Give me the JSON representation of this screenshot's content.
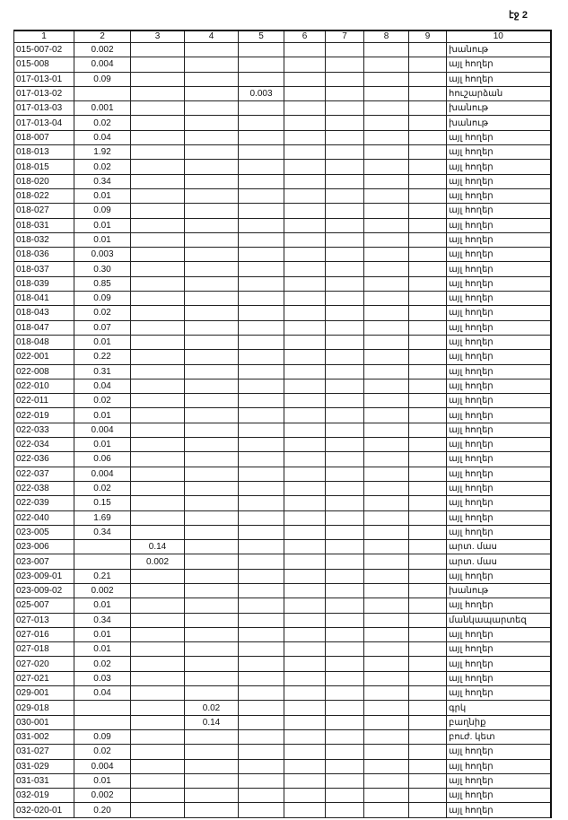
{
  "page_label": "էջ 2",
  "columns": [
    "1",
    "2",
    "3",
    "4",
    "5",
    "6",
    "7",
    "8",
    "9",
    "10"
  ],
  "rows": [
    [
      "015-007-02",
      "0.002",
      "",
      "",
      "",
      "",
      "",
      "",
      "",
      "խանութ"
    ],
    [
      "015-008",
      "0.004",
      "",
      "",
      "",
      "",
      "",
      "",
      "",
      "այլ հողեր"
    ],
    [
      "017-013-01",
      "0.09",
      "",
      "",
      "",
      "",
      "",
      "",
      "",
      "այլ հողեր"
    ],
    [
      "017-013-02",
      "",
      "",
      "",
      "0.003",
      "",
      "",
      "",
      "",
      "հուշարձան"
    ],
    [
      "017-013-03",
      "0.001",
      "",
      "",
      "",
      "",
      "",
      "",
      "",
      "խանութ"
    ],
    [
      "017-013-04",
      "0.02",
      "",
      "",
      "",
      "",
      "",
      "",
      "",
      "խանութ"
    ],
    [
      "018-007",
      "0.04",
      "",
      "",
      "",
      "",
      "",
      "",
      "",
      "այլ հողեր"
    ],
    [
      "018-013",
      "1.92",
      "",
      "",
      "",
      "",
      "",
      "",
      "",
      "այլ հողեր"
    ],
    [
      "018-015",
      "0.02",
      "",
      "",
      "",
      "",
      "",
      "",
      "",
      "այլ հողեր"
    ],
    [
      "018-020",
      "0.34",
      "",
      "",
      "",
      "",
      "",
      "",
      "",
      "այլ հողեր"
    ],
    [
      "018-022",
      "0.01",
      "",
      "",
      "",
      "",
      "",
      "",
      "",
      "այլ հողեր"
    ],
    [
      "018-027",
      "0.09",
      "",
      "",
      "",
      "",
      "",
      "",
      "",
      "այլ հողեր"
    ],
    [
      "018-031",
      "0.01",
      "",
      "",
      "",
      "",
      "",
      "",
      "",
      "այլ հողեր"
    ],
    [
      "018-032",
      "0.01",
      "",
      "",
      "",
      "",
      "",
      "",
      "",
      "այլ հողեր"
    ],
    [
      "018-036",
      "0.003",
      "",
      "",
      "",
      "",
      "",
      "",
      "",
      "այլ հողեր"
    ],
    [
      "018-037",
      "0.30",
      "",
      "",
      "",
      "",
      "",
      "",
      "",
      "այլ հողեր"
    ],
    [
      "018-039",
      "0.85",
      "",
      "",
      "",
      "",
      "",
      "",
      "",
      "այլ հողեր"
    ],
    [
      "018-041",
      "0.09",
      "",
      "",
      "",
      "",
      "",
      "",
      "",
      "այլ հողեր"
    ],
    [
      "018-043",
      "0.02",
      "",
      "",
      "",
      "",
      "",
      "",
      "",
      "այլ հողեր"
    ],
    [
      "018-047",
      "0.07",
      "",
      "",
      "",
      "",
      "",
      "",
      "",
      "այլ հողեր"
    ],
    [
      "018-048",
      "0.01",
      "",
      "",
      "",
      "",
      "",
      "",
      "",
      "այլ հողեր"
    ],
    [
      "022-001",
      "0.22",
      "",
      "",
      "",
      "",
      "",
      "",
      "",
      "այլ հողեր"
    ],
    [
      "022-008",
      "0.31",
      "",
      "",
      "",
      "",
      "",
      "",
      "",
      "այլ հողեր"
    ],
    [
      "022-010",
      "0.04",
      "",
      "",
      "",
      "",
      "",
      "",
      "",
      "այլ հողեր"
    ],
    [
      "022-011",
      "0.02",
      "",
      "",
      "",
      "",
      "",
      "",
      "",
      "այլ հողեր"
    ],
    [
      "022-019",
      "0.01",
      "",
      "",
      "",
      "",
      "",
      "",
      "",
      "այլ հողեր"
    ],
    [
      "022-033",
      "0.004",
      "",
      "",
      "",
      "",
      "",
      "",
      "",
      "այլ հողեր"
    ],
    [
      "022-034",
      "0.01",
      "",
      "",
      "",
      "",
      "",
      "",
      "",
      "այլ հողեր"
    ],
    [
      "022-036",
      "0.06",
      "",
      "",
      "",
      "",
      "",
      "",
      "",
      "այլ հողեր"
    ],
    [
      "022-037",
      "0.004",
      "",
      "",
      "",
      "",
      "",
      "",
      "",
      "այլ հողեր"
    ],
    [
      "022-038",
      "0.02",
      "",
      "",
      "",
      "",
      "",
      "",
      "",
      "այլ հողեր"
    ],
    [
      "022-039",
      "0.15",
      "",
      "",
      "",
      "",
      "",
      "",
      "",
      "այլ հողեր"
    ],
    [
      "022-040",
      "1.69",
      "",
      "",
      "",
      "",
      "",
      "",
      "",
      "այլ հողեր"
    ],
    [
      "023-005",
      "0.34",
      "",
      "",
      "",
      "",
      "",
      "",
      "",
      "այլ հողեր"
    ],
    [
      "023-006",
      "",
      "0.14",
      "",
      "",
      "",
      "",
      "",
      "",
      "արտ. մաս"
    ],
    [
      "023-007",
      "",
      "0.002",
      "",
      "",
      "",
      "",
      "",
      "",
      "արտ. մաս"
    ],
    [
      "023-009-01",
      "0.21",
      "",
      "",
      "",
      "",
      "",
      "",
      "",
      "այլ հողեր"
    ],
    [
      "023-009-02",
      "0.002",
      "",
      "",
      "",
      "",
      "",
      "",
      "",
      "խանութ"
    ],
    [
      "025-007",
      "0.01",
      "",
      "",
      "",
      "",
      "",
      "",
      "",
      "այլ հողեր"
    ],
    [
      "027-013",
      "0.34",
      "",
      "",
      "",
      "",
      "",
      "",
      "",
      "մանկապարտեզ"
    ],
    [
      "027-016",
      "0.01",
      "",
      "",
      "",
      "",
      "",
      "",
      "",
      "այլ հողեր"
    ],
    [
      "027-018",
      "0.01",
      "",
      "",
      "",
      "",
      "",
      "",
      "",
      "այլ հողեր"
    ],
    [
      "027-020",
      "0.02",
      "",
      "",
      "",
      "",
      "",
      "",
      "",
      "այլ հողեր"
    ],
    [
      "027-021",
      "0.03",
      "",
      "",
      "",
      "",
      "",
      "",
      "",
      "այլ հողեր"
    ],
    [
      "029-001",
      "0.04",
      "",
      "",
      "",
      "",
      "",
      "",
      "",
      "այլ հողեր"
    ],
    [
      "029-018",
      "",
      "",
      "0.02",
      "",
      "",
      "",
      "",
      "",
      "գրկ"
    ],
    [
      "030-001",
      "",
      "",
      "0.14",
      "",
      "",
      "",
      "",
      "",
      "բաղնիք"
    ],
    [
      "031-002",
      "0.09",
      "",
      "",
      "",
      "",
      "",
      "",
      "",
      "բուժ. կետ"
    ],
    [
      "031-027",
      "0.02",
      "",
      "",
      "",
      "",
      "",
      "",
      "",
      "այլ հողեր"
    ],
    [
      "031-029",
      "0.004",
      "",
      "",
      "",
      "",
      "",
      "",
      "",
      "այլ հողեր"
    ],
    [
      "031-031",
      "0.01",
      "",
      "",
      "",
      "",
      "",
      "",
      "",
      "այլ հողեր"
    ],
    [
      "032-019",
      "0.002",
      "",
      "",
      "",
      "",
      "",
      "",
      "",
      "այլ հողեր"
    ],
    [
      "032-020-01",
      "0.20",
      "",
      "",
      "",
      "",
      "",
      "",
      "",
      "այլ հողեր"
    ]
  ]
}
